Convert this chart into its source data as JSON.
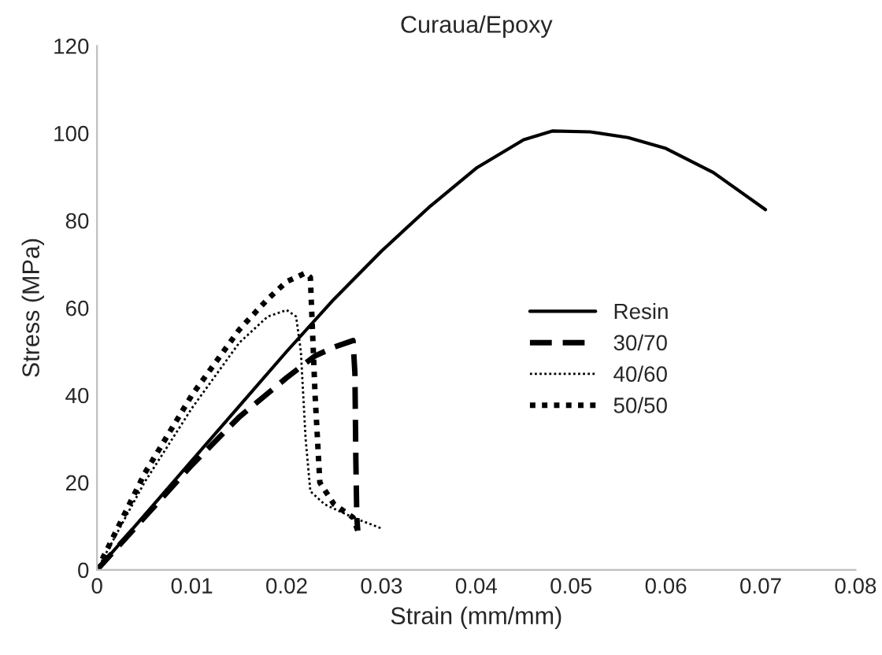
{
  "chart_data": {
    "type": "line",
    "title": "Curaua/Epoxy",
    "xlabel": "Strain (mm/mm)",
    "ylabel": "Stress (MPa)",
    "xlim": [
      0,
      0.08
    ],
    "xticks": [
      {
        "value": 0,
        "label": "0"
      },
      0.01,
      0.02,
      0.03,
      0.04,
      0.05,
      0.06,
      0.07,
      0.08
    ],
    "ylim": [
      0,
      120
    ],
    "yticks": [
      0,
      20,
      40,
      60,
      80,
      100,
      120
    ],
    "grid": false,
    "legend": "right",
    "marker": "none",
    "series": [
      {
        "name": "Resin",
        "color": "#000000",
        "line_style": "solid",
        "x": [
          0,
          0.01,
          0.02,
          0.025,
          0.03,
          0.035,
          0.04,
          0.045,
          0.048,
          0.052,
          0.056,
          0.06,
          0.065,
          0.0705
        ],
        "values": [
          0,
          25,
          50,
          62,
          73,
          83,
          92,
          98.5,
          100.5,
          100.3,
          99,
          96.5,
          91,
          82.5
        ]
      },
      {
        "name": "30/70",
        "color": "#000000",
        "line_style": "dashed",
        "x": [
          0,
          0.005,
          0.01,
          0.015,
          0.02,
          0.023,
          0.025,
          0.027,
          0.0272,
          0.0273,
          0.0274,
          0.0275
        ],
        "values": [
          0,
          12,
          24,
          35,
          44,
          49,
          51,
          52.5,
          45,
          25,
          12,
          9
        ]
      },
      {
        "name": "40/60",
        "color": "#000000",
        "line_style": "dotted",
        "x": [
          0,
          0.005,
          0.01,
          0.015,
          0.018,
          0.02,
          0.021,
          0.0215,
          0.022,
          0.0225,
          0.024,
          0.027,
          0.03
        ],
        "values": [
          0,
          20,
          37,
          52,
          58,
          59.5,
          58,
          50,
          30,
          18,
          15,
          12,
          9.5
        ]
      },
      {
        "name": "50/50",
        "color": "#000000",
        "line_style": "dotted",
        "x": [
          0,
          0.005,
          0.01,
          0.015,
          0.018,
          0.02,
          0.022,
          0.0225,
          0.023,
          0.0235,
          0.025,
          0.027,
          0.0275
        ],
        "values": [
          0,
          22,
          40,
          55,
          62,
          66,
          68,
          67,
          40,
          20,
          15,
          12,
          9
        ]
      }
    ]
  }
}
